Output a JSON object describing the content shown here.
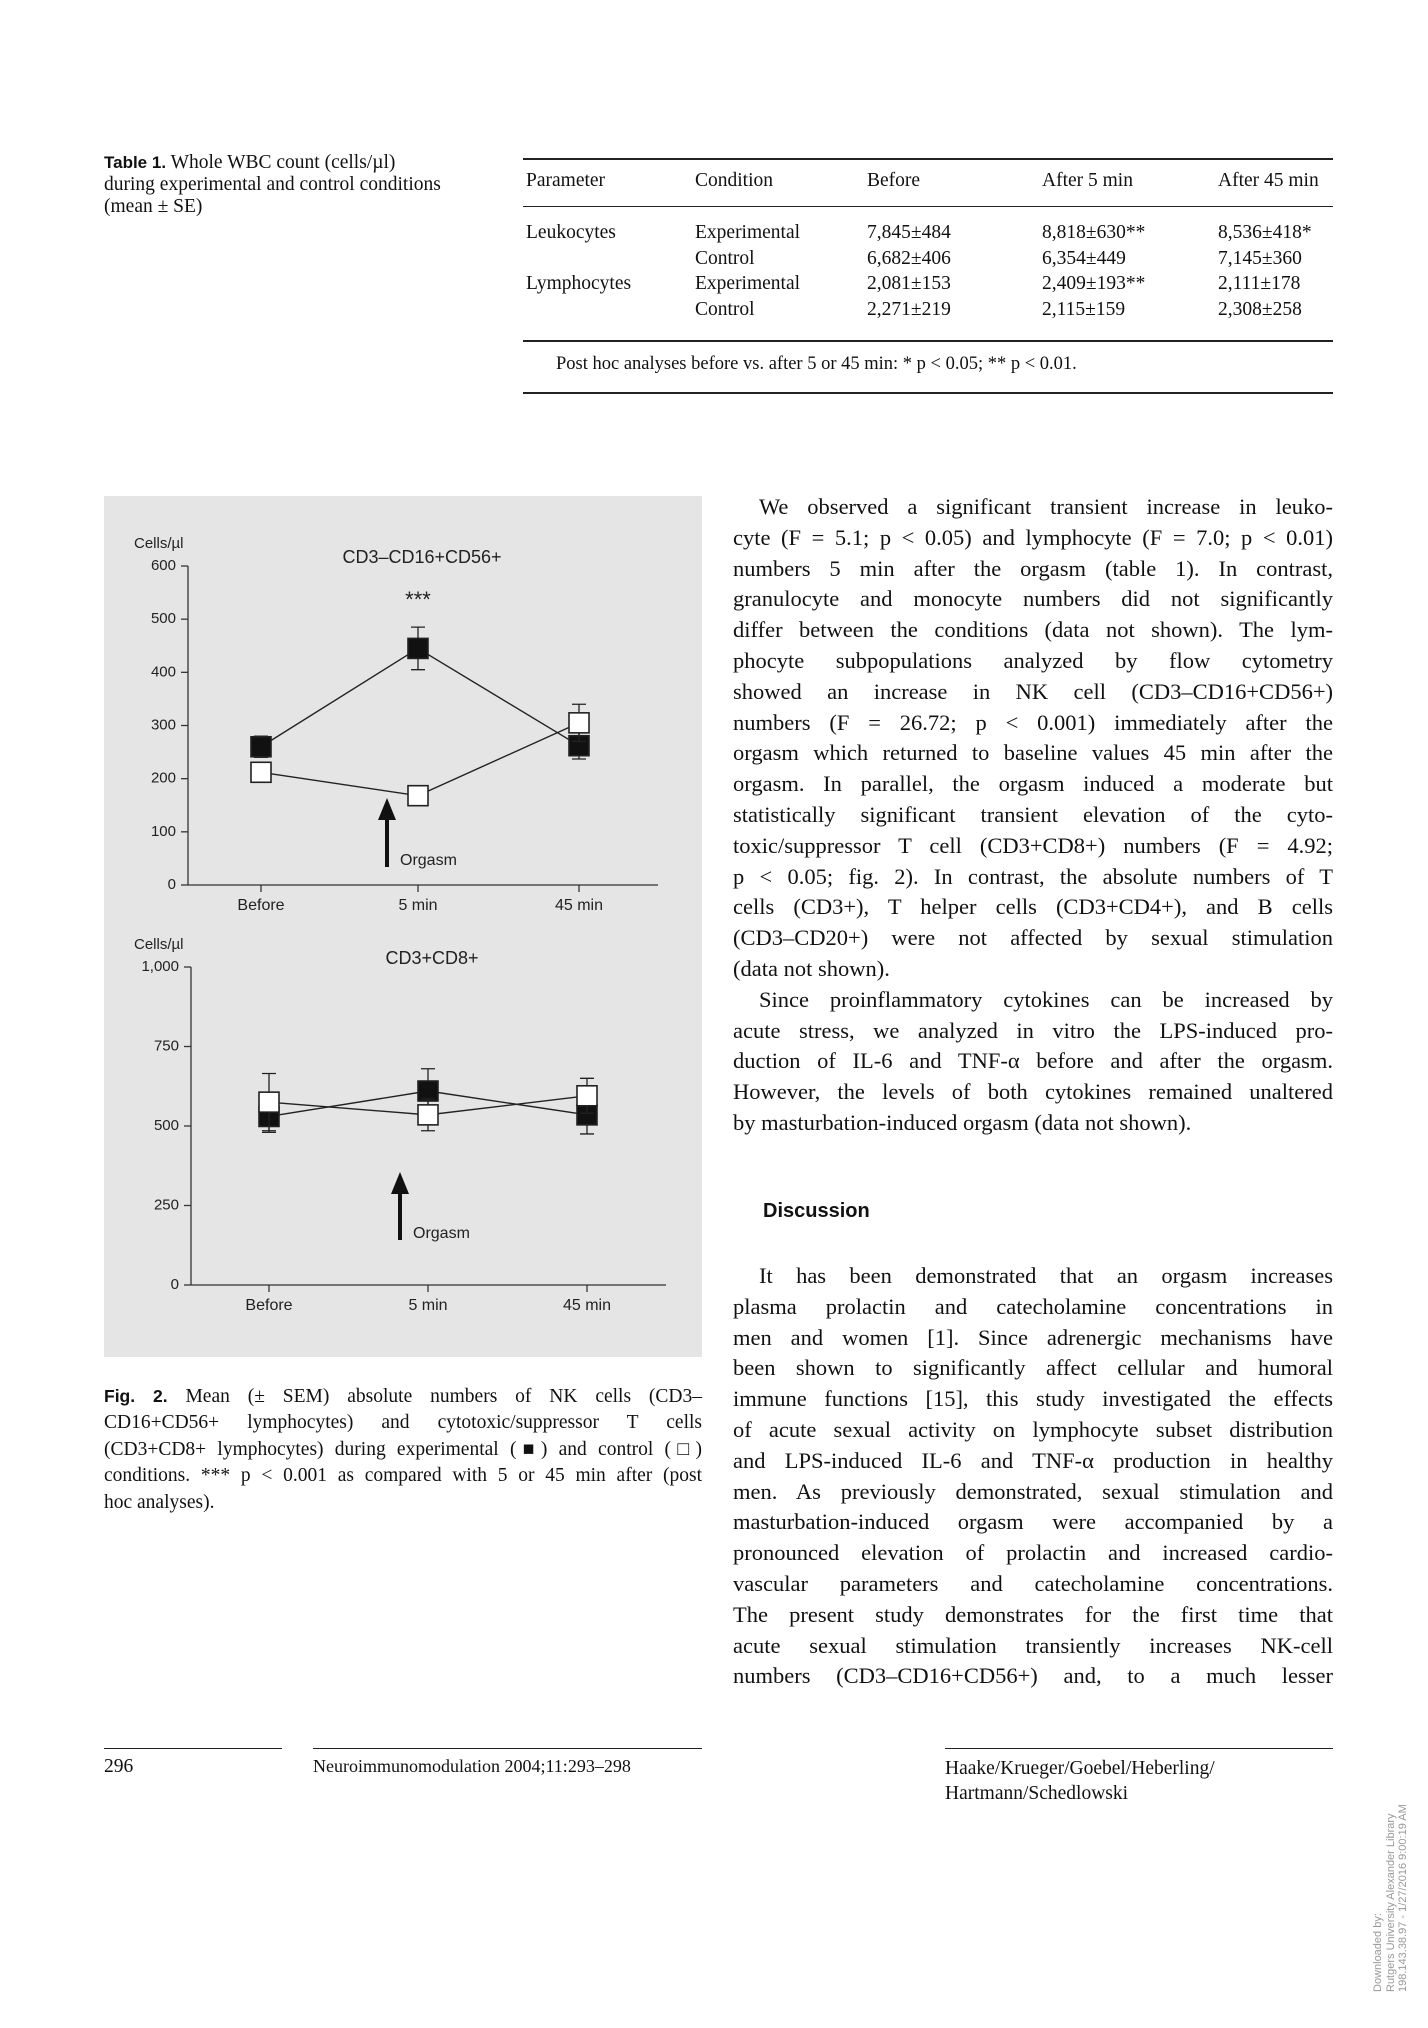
{
  "table": {
    "label": "Table 1.",
    "caption_lines": [
      "Whole WBC count (cells/µl)",
      "during experimental and control conditions",
      "(mean ± SE)"
    ],
    "header": [
      "Parameter",
      "Condition",
      "Before",
      "After 5 min",
      "After 45 min"
    ],
    "groups": [
      {
        "parameter": "Leukocytes",
        "rows": [
          [
            "Experimental",
            "7,845±484",
            "8,818±630**",
            "8,536±418*"
          ],
          [
            "Control",
            "6,682±406",
            "6,354±449",
            "7,145±360"
          ]
        ]
      },
      {
        "parameter": "Lymphocytes",
        "rows": [
          [
            "Experimental",
            "2,081±153",
            "2,409±193**",
            "2,111±178"
          ],
          [
            "Control",
            "2,271±219",
            "2,115±159",
            "2,308±258"
          ]
        ]
      }
    ],
    "footnote": "Post hoc analyses before vs. after 5 or 45 min: * p < 0.05; ** p < 0.01."
  },
  "figure": {
    "charts": [
      {
        "type": "line",
        "title": "CD3–CD16+CD56+",
        "y_label": "Cells/µl",
        "categories": [
          "Before",
          "5 min",
          "45 min"
        ],
        "ylim": [
          0,
          600
        ],
        "yticks": [
          0,
          100,
          200,
          300,
          400,
          500,
          600
        ],
        "annotation": "***",
        "arrow_label": "Orgasm",
        "series": [
          {
            "marker": "filled",
            "color": "#111111",
            "values": [
              260,
              445,
              262
            ],
            "errors": [
              20,
              40,
              25
            ]
          },
          {
            "marker": "open",
            "color": "#ffffff",
            "values": [
              212,
              168,
              305
            ],
            "errors": [
              15,
              8,
              35
            ]
          }
        ]
      },
      {
        "type": "line",
        "title": "CD3+CD8+",
        "y_label": "Cells/µl",
        "categories": [
          "Before",
          "5 min",
          "45 min"
        ],
        "ylim": [
          0,
          1000
        ],
        "yticks": [
          0,
          250,
          500,
          750,
          {
            "value": 1000,
            "label": "1,000"
          }
        ],
        "arrow_label": "Orgasm",
        "series": [
          {
            "marker": "filled",
            "color": "#111111",
            "values": [
              530,
              610,
              535
            ],
            "errors": [
              50,
              70,
              60
            ]
          },
          {
            "marker": "open",
            "color": "#ffffff",
            "values": [
              575,
              535,
              595
            ],
            "errors": [
              90,
              50,
              55
            ]
          }
        ]
      }
    ],
    "caption": {
      "label": "Fig. 2.",
      "lines": [
        "Mean (± SEM) absolute numbers of NK cells (CD3–",
        "CD16+CD56+ lymphocytes) and cytotoxic/suppressor T cells",
        "(CD3+CD8+ lymphocytes) during experimental (■) and control (□)",
        "conditions. *** p < 0.001 as compared with 5 or 45 min after (post",
        "hoc analyses)."
      ]
    }
  },
  "body": {
    "paragraphs": [
      {
        "lines": [
          "We observed a significant transient increase in leuko-",
          "cyte (F = 5.1; p < 0.05) and lymphocyte (F = 7.0; p < 0.01)",
          "numbers 5 min after the orgasm (table 1). In contrast,",
          "granulocyte and monocyte numbers did not significantly",
          "differ between the conditions (data not shown). The lym-",
          "phocyte subpopulations analyzed by flow cytometry",
          "showed an increase in NK cell (CD3–CD16+CD56+)",
          "numbers (F = 26.72; p < 0.001) immediately after the",
          "orgasm which returned to baseline values 45 min after the",
          "orgasm. In parallel, the orgasm induced a moderate but",
          "statistically significant transient elevation of the cyto-",
          "toxic/suppressor T cell (CD3+CD8+) numbers (F = 4.92;",
          "p < 0.05; fig. 2). In contrast, the absolute numbers of T",
          "cells (CD3+), T helper cells (CD3+CD4+), and B cells",
          "(CD3–CD20+) were not affected by sexual stimulation",
          "(data not shown)."
        ]
      },
      {
        "lines": [
          "Since proinflammatory cytokines can be increased by",
          "acute stress, we analyzed in vitro the LPS-induced pro-",
          "duction of IL-6 and TNF-α before and after the orgasm.",
          "However, the levels of both cytokines remained unaltered",
          "by masturbation-induced orgasm (data not shown)."
        ]
      }
    ],
    "discussion_heading": "Discussion",
    "discussion_lines": [
      "It has been demonstrated that an orgasm increases",
      "plasma prolactin and catecholamine concentrations in",
      "men and women [1]. Since adrenergic mechanisms have",
      "been shown to significantly affect cellular and humoral",
      "immune functions [15], this study investigated the effects",
      "of acute sexual activity on lymphocyte subset distribution",
      "and LPS-induced IL-6 and TNF-α production in healthy",
      "men. As previously demonstrated, sexual stimulation and",
      "masturbation-induced orgasm were accompanied by a",
      "pronounced elevation of prolactin and increased cardio-",
      "vascular parameters and catecholamine concentrations.",
      "The present study demonstrates for the first time that",
      "acute sexual stimulation transiently increases NK-cell",
      "numbers (CD3–CD16+CD56+) and, to a much lesser"
    ]
  },
  "footer": {
    "page": "296",
    "journal": "Neuroimmunomodulation 2004;11:293–298",
    "authors": [
      "Haake/Krueger/Goebel/Heberling/",
      "Hartmann/Schedlowski"
    ]
  },
  "download": [
    "Downloaded by:",
    "Rutgers University Alexander Library",
    "198.143.38.97 - 1/27/2016 9:00:19 AM"
  ]
}
